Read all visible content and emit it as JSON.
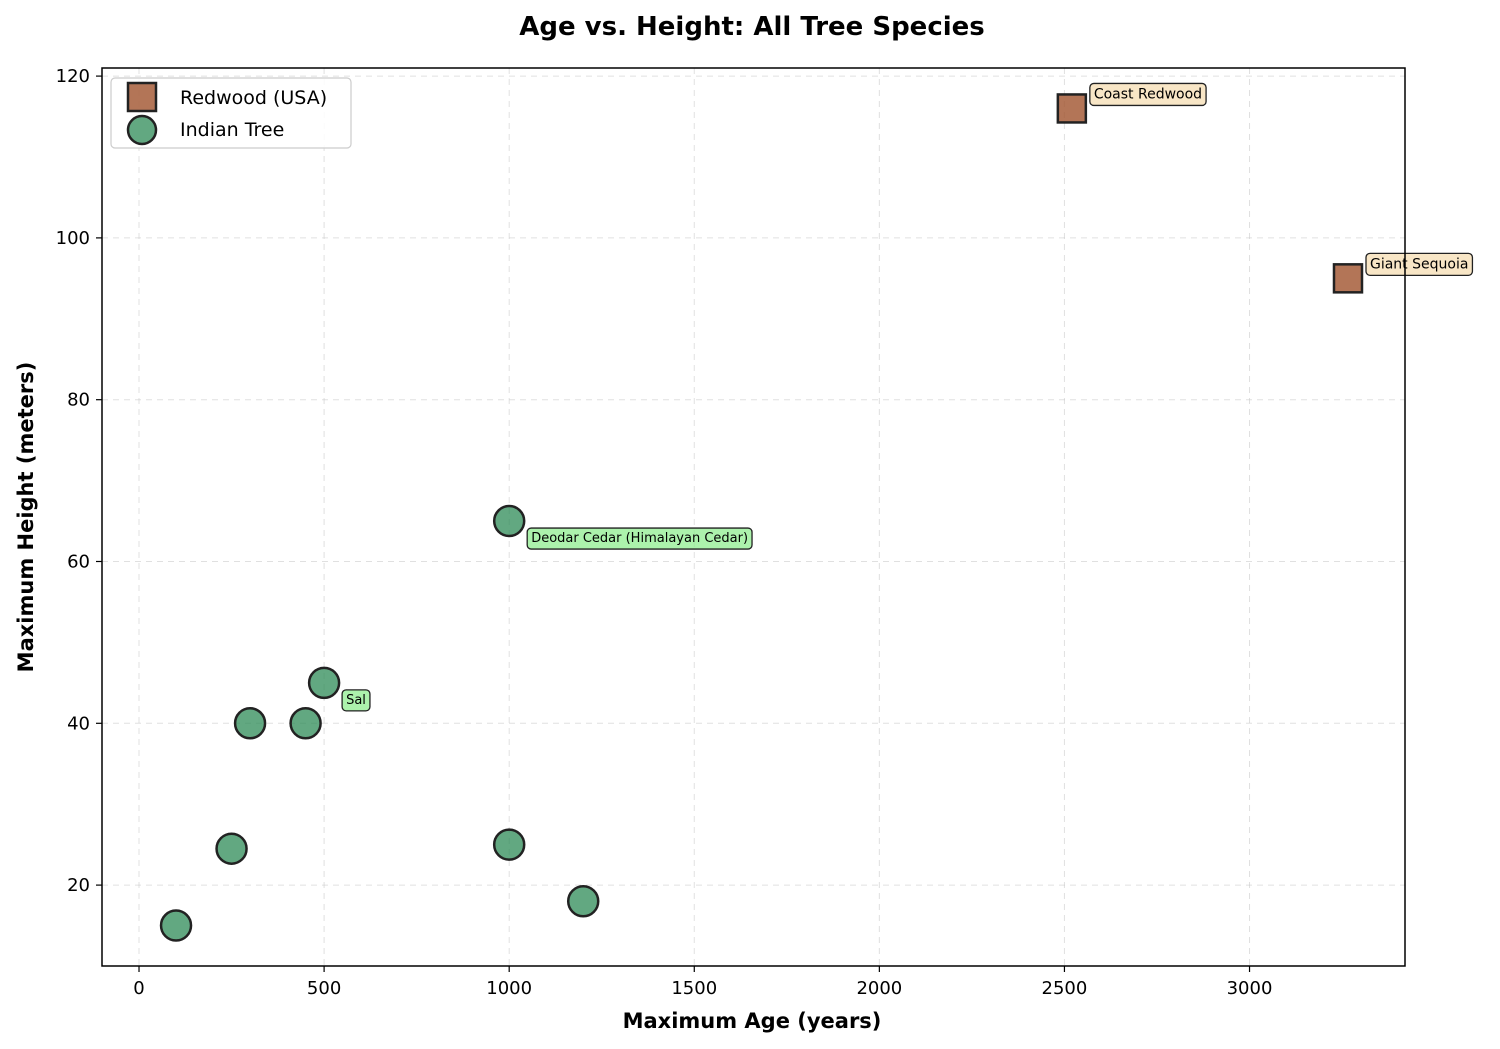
{
  "chart_data": {
    "type": "scatter",
    "title": "Age vs. Height: All Tree Species",
    "xlabel": "Maximum Age (years)",
    "ylabel": "Maximum Height (meters)",
    "xlim": [
      -100,
      3420
    ],
    "ylim": [
      10,
      121
    ],
    "xticks": [
      0,
      500,
      1000,
      1500,
      2000,
      2500,
      3000
    ],
    "yticks": [
      20,
      40,
      60,
      80,
      100,
      120
    ],
    "grid": true,
    "legend_position": "top-left",
    "series": [
      {
        "name": "Redwood (USA)",
        "marker": "square",
        "color": "#a0522d",
        "points": [
          {
            "x": 2520,
            "y": 116,
            "label": "Coast Redwood"
          },
          {
            "x": 3266,
            "y": 95,
            "label": "Giant Sequoia"
          }
        ]
      },
      {
        "name": "Indian Tree",
        "marker": "circle",
        "color": "#2e8b57",
        "points": [
          {
            "x": 1000,
            "y": 65,
            "label": "Deodar Cedar (Himalayan Cedar)"
          },
          {
            "x": 500,
            "y": 45,
            "label": "Sal"
          },
          {
            "x": 300,
            "y": 40,
            "label": ""
          },
          {
            "x": 450,
            "y": 40,
            "label": ""
          },
          {
            "x": 250,
            "y": 24.5,
            "label": ""
          },
          {
            "x": 1000,
            "y": 25,
            "label": ""
          },
          {
            "x": 1200,
            "y": 18,
            "label": ""
          },
          {
            "x": 100,
            "y": 15,
            "label": ""
          }
        ]
      }
    ],
    "annotation_colors": {
      "redwood_box": "#f5deb3",
      "indian_box": "#90ee90"
    }
  }
}
